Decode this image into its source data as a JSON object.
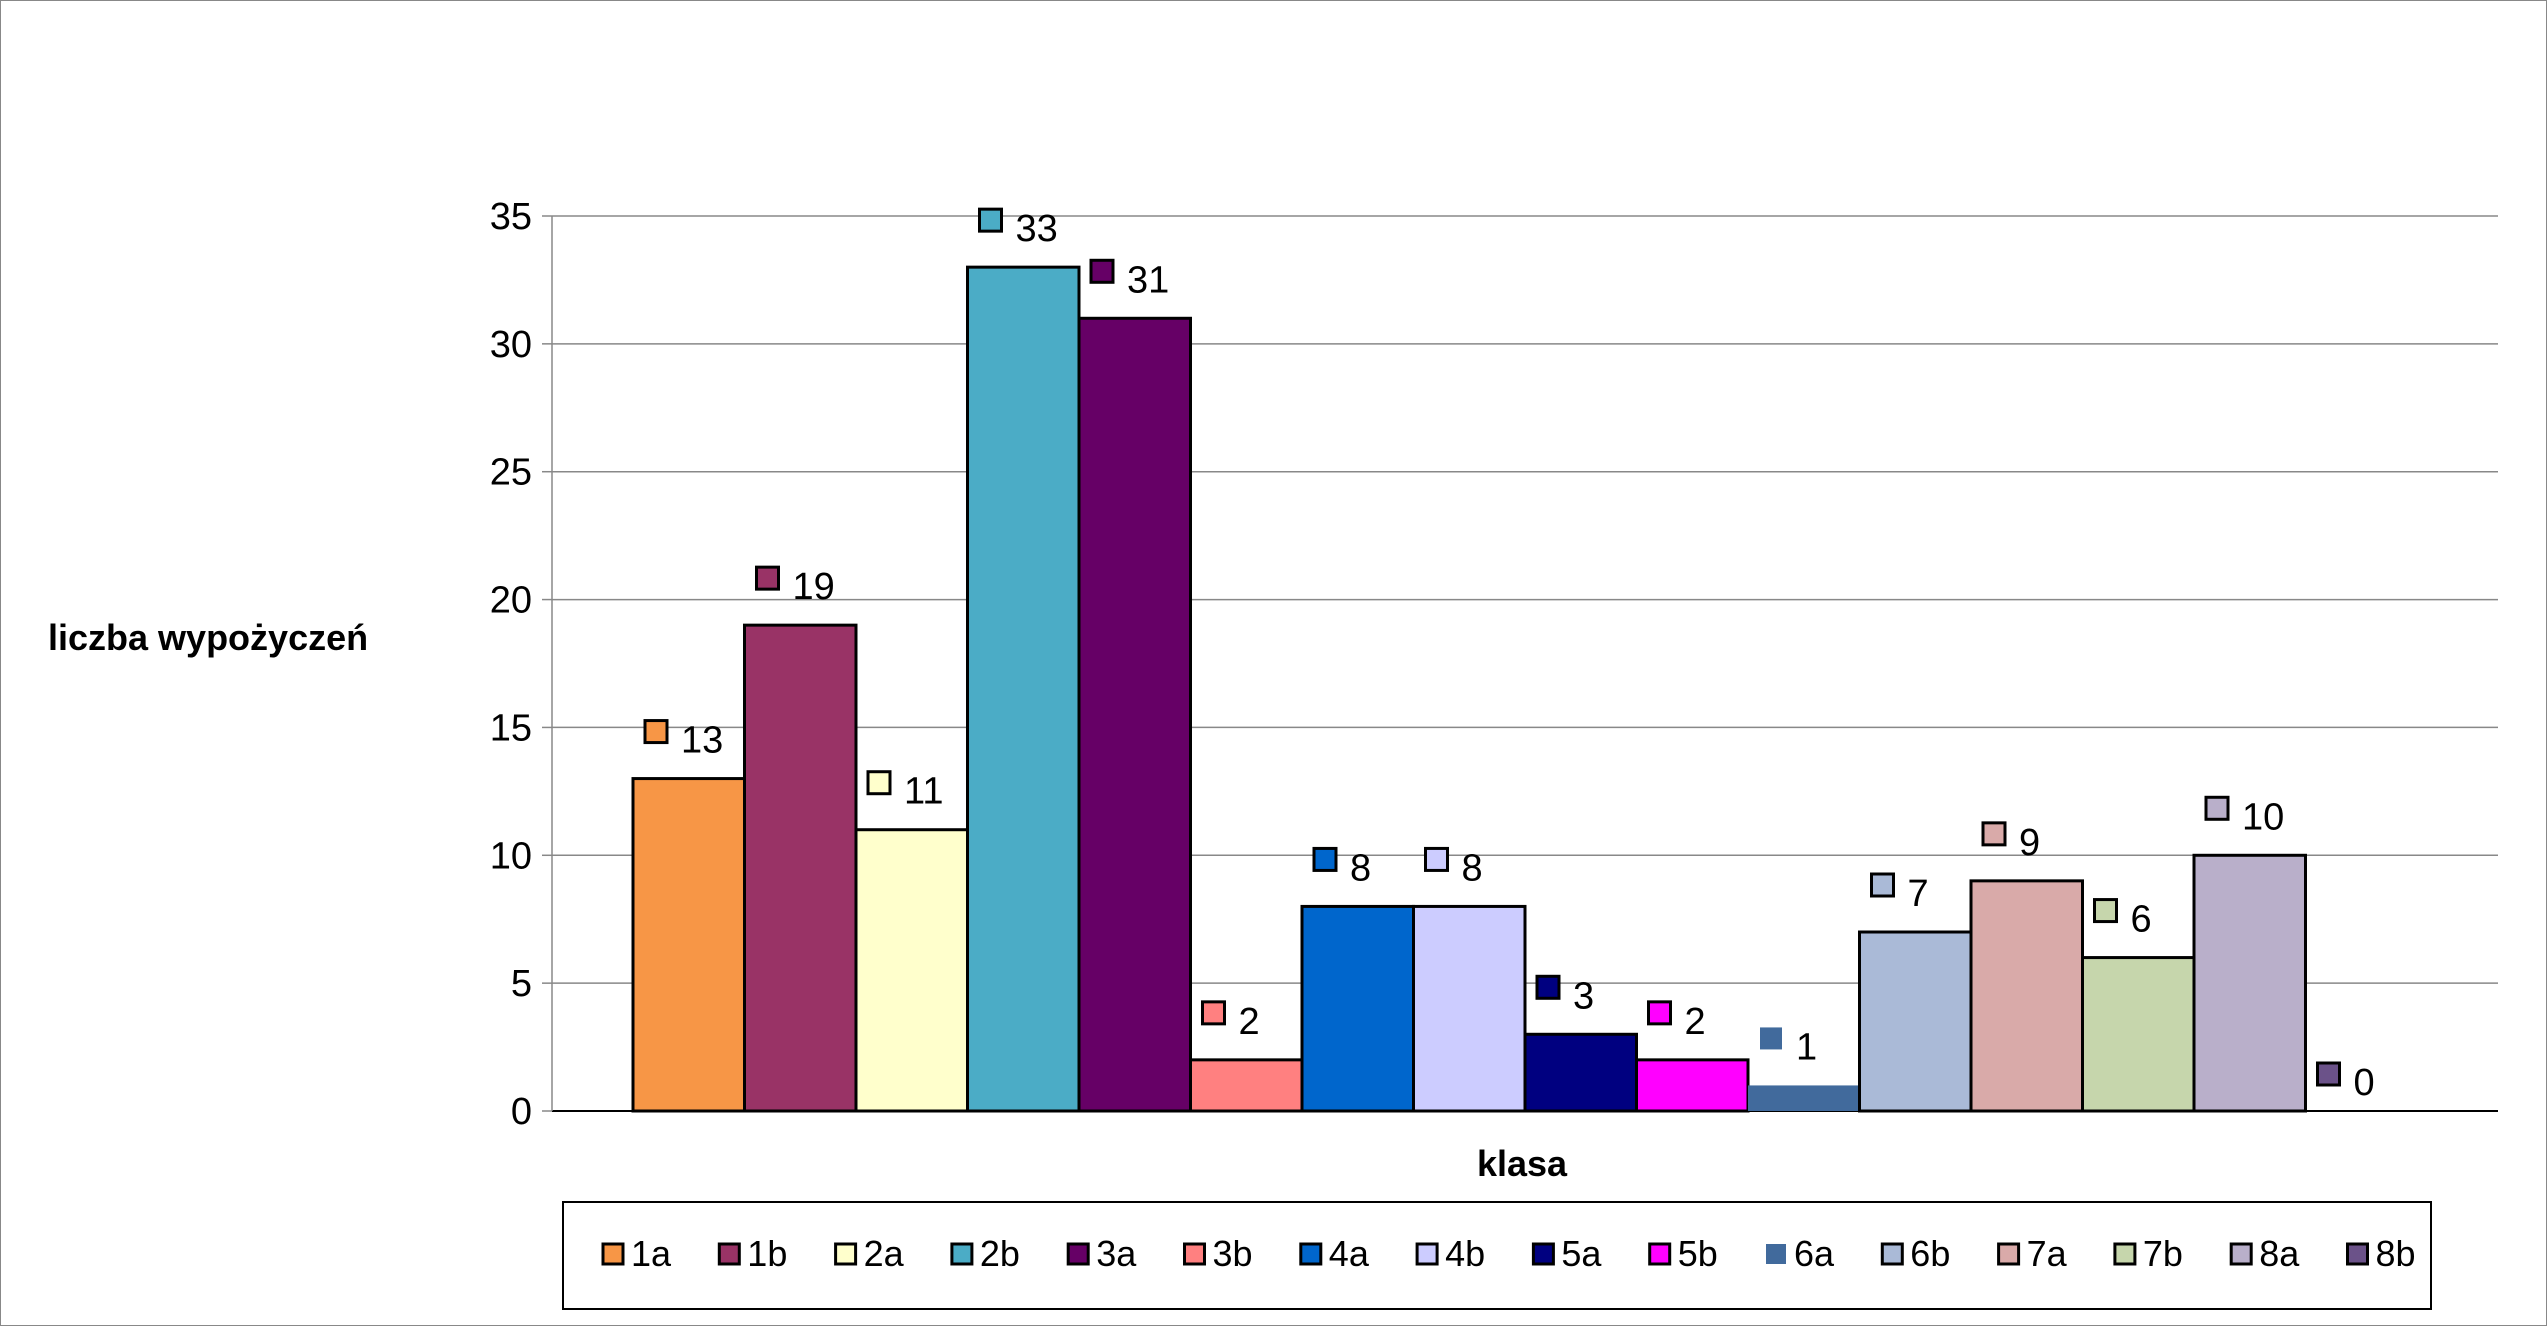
{
  "chart_data": {
    "type": "bar",
    "title": "",
    "xlabel": "klasa",
    "ylabel": "liczba wypożyczeń",
    "ylim": [
      0,
      35
    ],
    "yticks": [
      0,
      5,
      10,
      15,
      20,
      25,
      30,
      35
    ],
    "grid": true,
    "legend_position": "bottom",
    "categories": [
      "1a",
      "1b",
      "2a",
      "2b",
      "3a",
      "3b",
      "4a",
      "4b",
      "5a",
      "5b",
      "6a",
      "6b",
      "7a",
      "7b",
      "8a",
      "8b"
    ],
    "values": [
      13,
      19,
      11,
      33,
      31,
      2,
      8,
      8,
      3,
      2,
      1,
      7,
      9,
      6,
      10,
      0
    ],
    "colors": [
      "#F79646",
      "#993366",
      "#FFFFCC",
      "#4BACC6",
      "#660066",
      "#FF8080",
      "#0066CC",
      "#CCCCFF",
      "#000080",
      "#FF00FF",
      "#416A9C",
      "#AABAD7",
      "#D9AAA9",
      "#C6D6AC",
      "#B9AFCA",
      "#6B5289"
    ],
    "outlined": [
      true,
      true,
      true,
      true,
      true,
      true,
      true,
      true,
      true,
      true,
      false,
      true,
      true,
      true,
      true,
      true
    ]
  }
}
